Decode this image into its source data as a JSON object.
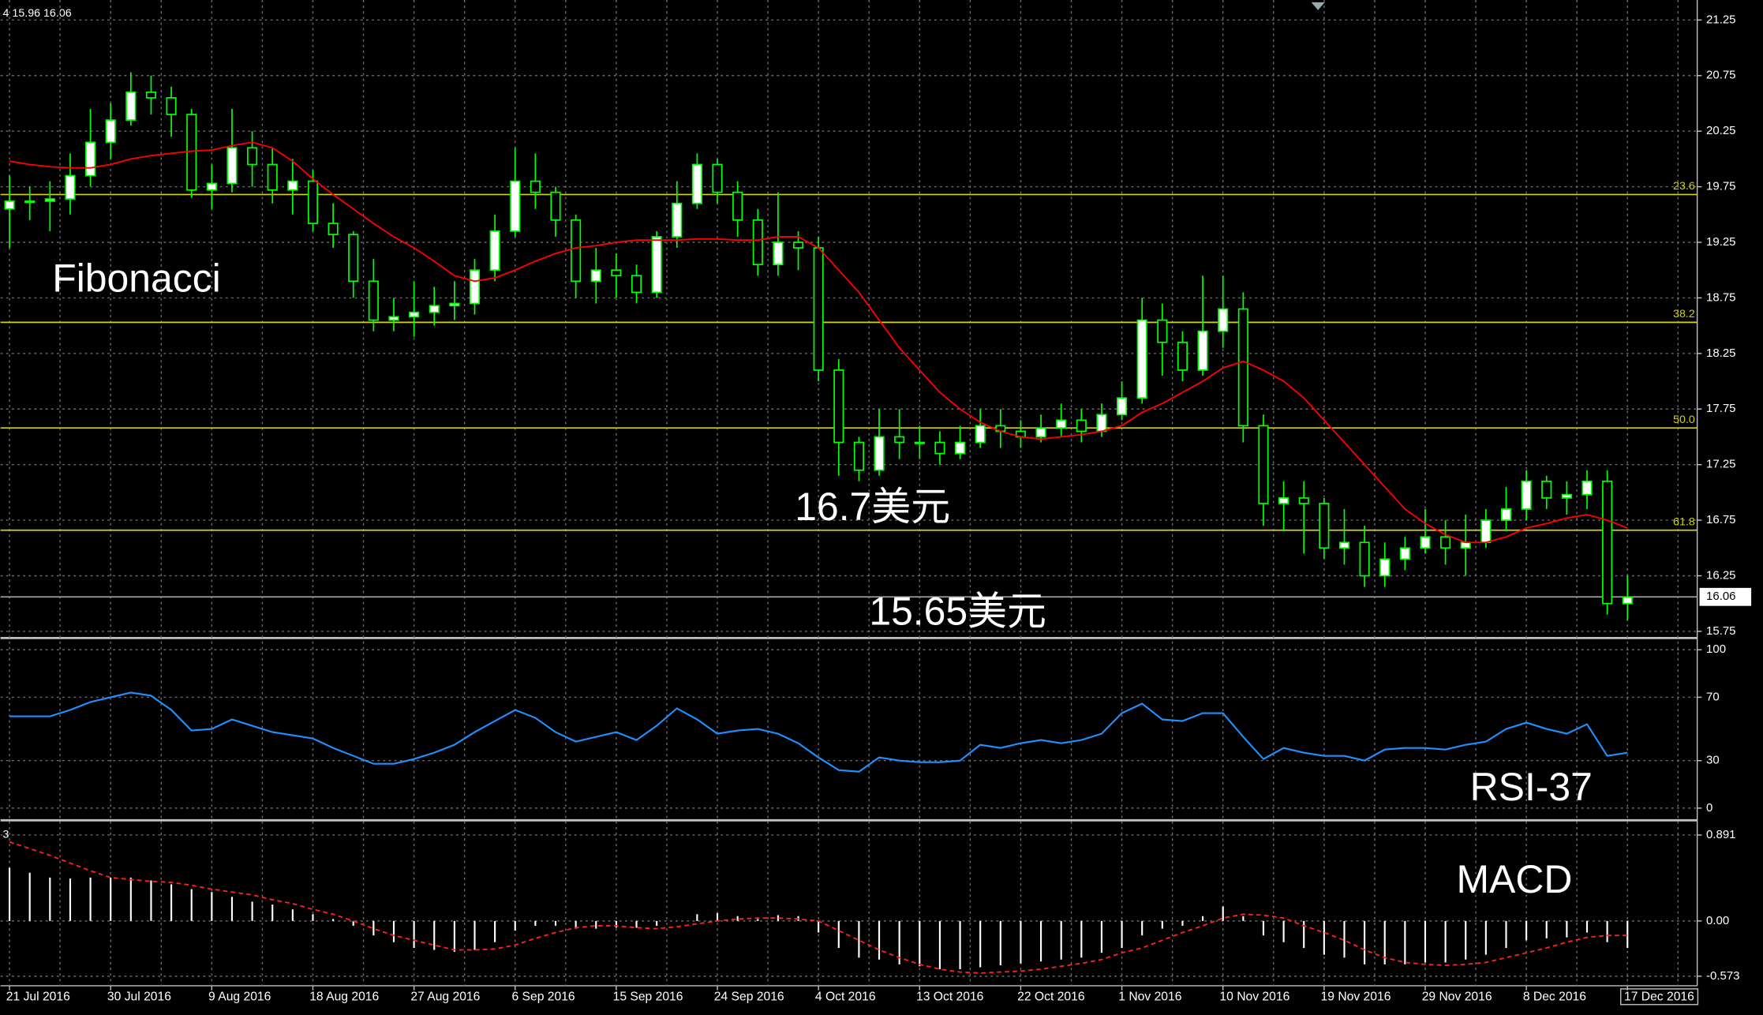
{
  "header": "4 15.96 16.06",
  "chart_data": [
    {
      "type": "candlestick",
      "categories": [
        "21 Jul 2016",
        null,
        null,
        null,
        null,
        "30 Jul 2016",
        null,
        null,
        null,
        null,
        "9 Aug 2016",
        null,
        null,
        null,
        null,
        "18 Aug 2016",
        null,
        null,
        null,
        null,
        "27 Aug 2016",
        null,
        null,
        null,
        null,
        "6 Sep 2016",
        null,
        null,
        null,
        null,
        "15 Sep 2016",
        null,
        null,
        null,
        null,
        "24 Sep 2016",
        null,
        null,
        null,
        null,
        "4 Oct 2016",
        null,
        null,
        null,
        null,
        "13 Oct 2016",
        null,
        null,
        null,
        null,
        "22 Oct 2016",
        null,
        null,
        null,
        null,
        "1 Nov 2016",
        null,
        null,
        null,
        null,
        "10 Nov 2016",
        null,
        null,
        null,
        null,
        "19 Nov 2016",
        null,
        null,
        null,
        null,
        "29 Nov 2016",
        null,
        null,
        null,
        null,
        "8 Dec 2016",
        null,
        null,
        null,
        null,
        "17 Dec 2016"
      ],
      "open": [
        19.55,
        19.62,
        19.62,
        19.64,
        19.85,
        20.15,
        20.35,
        20.6,
        20.55,
        20.4,
        19.72,
        19.78,
        20.1,
        19.95,
        19.72,
        19.8,
        19.42,
        19.32,
        18.9,
        18.55,
        18.58,
        18.62,
        18.68,
        18.7,
        19.0,
        19.35,
        19.8,
        19.7,
        19.45,
        18.9,
        19.0,
        18.95,
        18.8,
        19.3,
        19.6,
        19.95,
        19.7,
        19.45,
        19.05,
        19.25,
        19.2,
        18.1,
        17.45,
        17.2,
        17.5,
        17.45,
        17.45,
        17.35,
        17.45,
        17.6,
        17.55,
        17.5,
        17.58,
        17.65,
        17.55,
        17.7,
        17.85,
        18.55,
        18.35,
        18.1,
        18.45,
        18.65,
        17.6,
        16.9,
        16.95,
        16.9,
        16.5,
        16.55,
        16.25,
        16.4,
        16.5,
        16.6,
        16.5,
        16.55,
        16.75,
        16.85,
        17.1,
        16.95,
        16.98,
        17.1,
        16.0
      ],
      "high": [
        19.85,
        19.75,
        19.8,
        20.05,
        20.45,
        20.5,
        20.78,
        20.75,
        20.65,
        20.45,
        19.95,
        20.45,
        20.25,
        20.1,
        20.0,
        19.9,
        19.6,
        19.35,
        19.1,
        18.75,
        18.9,
        18.85,
        18.9,
        19.1,
        19.5,
        20.1,
        20.05,
        19.75,
        19.5,
        19.2,
        19.15,
        19.05,
        19.35,
        19.8,
        20.05,
        20.0,
        19.8,
        19.55,
        19.7,
        19.35,
        19.3,
        18.2,
        17.5,
        17.75,
        17.75,
        17.6,
        17.55,
        17.6,
        17.75,
        17.75,
        17.65,
        17.7,
        17.8,
        17.75,
        17.8,
        18.0,
        18.75,
        18.7,
        18.45,
        18.95,
        18.95,
        18.8,
        17.7,
        17.1,
        17.1,
        16.95,
        16.85,
        16.7,
        16.55,
        16.6,
        16.85,
        16.75,
        16.8,
        16.85,
        17.05,
        17.2,
        17.15,
        17.1,
        17.2,
        17.2,
        16.25
      ],
      "low": [
        19.2,
        19.45,
        19.35,
        19.5,
        19.75,
        20.0,
        20.3,
        20.4,
        20.2,
        19.65,
        19.55,
        19.7,
        19.75,
        19.6,
        19.5,
        19.35,
        19.2,
        18.75,
        18.45,
        18.45,
        18.4,
        18.5,
        18.55,
        18.6,
        18.9,
        19.3,
        19.55,
        19.3,
        18.75,
        18.7,
        18.75,
        18.7,
        18.75,
        19.2,
        19.55,
        19.6,
        19.3,
        18.95,
        18.95,
        19.0,
        18.0,
        17.15,
        17.1,
        17.15,
        17.3,
        17.3,
        17.25,
        17.3,
        17.4,
        17.4,
        17.4,
        17.45,
        17.5,
        17.45,
        17.5,
        17.65,
        17.8,
        18.05,
        18.0,
        18.05,
        18.3,
        17.45,
        16.7,
        16.65,
        16.45,
        16.4,
        16.35,
        16.15,
        16.15,
        16.3,
        16.45,
        16.35,
        16.25,
        16.5,
        16.65,
        16.75,
        16.85,
        16.8,
        16.85,
        15.9,
        15.85
      ],
      "close": [
        19.62,
        19.62,
        19.64,
        19.85,
        20.15,
        20.35,
        20.6,
        20.55,
        20.4,
        19.72,
        19.78,
        20.1,
        19.95,
        19.72,
        19.8,
        19.42,
        19.32,
        18.9,
        18.55,
        18.58,
        18.62,
        18.68,
        18.7,
        19.0,
        19.35,
        19.8,
        19.7,
        19.45,
        18.9,
        19.0,
        18.95,
        18.8,
        19.3,
        19.6,
        19.95,
        19.7,
        19.45,
        19.05,
        19.25,
        19.2,
        18.1,
        17.45,
        17.2,
        17.5,
        17.45,
        17.45,
        17.35,
        17.45,
        17.6,
        17.55,
        17.5,
        17.58,
        17.65,
        17.55,
        17.7,
        17.85,
        18.55,
        18.35,
        18.1,
        18.45,
        18.65,
        17.6,
        16.9,
        16.95,
        16.9,
        16.5,
        16.55,
        16.25,
        16.4,
        16.5,
        16.6,
        16.5,
        16.55,
        16.75,
        16.85,
        17.1,
        16.95,
        16.98,
        17.1,
        16.0,
        16.06
      ],
      "color": "#00ff00",
      "ma": {
        "color": "#ff0000",
        "values": [
          19.98,
          19.95,
          19.93,
          19.92,
          19.92,
          19.95,
          20.0,
          20.03,
          20.05,
          20.07,
          20.08,
          20.12,
          20.15,
          20.1,
          19.98,
          19.82,
          19.68,
          19.55,
          19.42,
          19.3,
          19.2,
          19.08,
          18.95,
          18.9,
          18.93,
          19.0,
          19.08,
          19.15,
          19.2,
          19.22,
          19.25,
          19.27,
          19.27,
          19.27,
          19.28,
          19.28,
          19.27,
          19.27,
          19.3,
          19.3,
          19.2,
          19.0,
          18.8,
          18.55,
          18.3,
          18.1,
          17.9,
          17.75,
          17.63,
          17.55,
          17.5,
          17.48,
          17.5,
          17.52,
          17.55,
          17.6,
          17.72,
          17.8,
          17.9,
          18.0,
          18.12,
          18.18,
          18.1,
          18.0,
          17.85,
          17.65,
          17.45,
          17.25,
          17.05,
          16.85,
          16.72,
          16.62,
          16.55,
          16.55,
          16.6,
          16.68,
          16.72,
          16.77,
          16.8,
          16.75,
          16.68
        ]
      },
      "fib_levels": [
        {
          "label": "23.6",
          "price": 19.68
        },
        {
          "label": "38.2",
          "price": 18.53
        },
        {
          "label": "50.0",
          "price": 17.58
        },
        {
          "label": "61.8",
          "price": 16.66
        }
      ],
      "fib_color": "#d4d400",
      "last_price": 16.06,
      "annotations": [
        "Fibonacci",
        "16.7美元",
        "15.65美元"
      ],
      "ylim": [
        15.7,
        21.43
      ],
      "yticks": [
        15.75,
        16.25,
        16.75,
        17.25,
        17.75,
        18.25,
        18.75,
        19.25,
        19.75,
        20.25,
        20.75,
        21.25
      ],
      "grid": true
    },
    {
      "type": "line",
      "title": "RSI-37",
      "color": "#1e90ff",
      "values": [
        58,
        58,
        58,
        62,
        67,
        70,
        73,
        71,
        62,
        49,
        50,
        56,
        52,
        48,
        46,
        44,
        38,
        33,
        28,
        28,
        31,
        35,
        40,
        48,
        55,
        62,
        57,
        48,
        42,
        45,
        48,
        43,
        52,
        63,
        56,
        47,
        49,
        50,
        47,
        41,
        32,
        24,
        23,
        32,
        30,
        29,
        29,
        30,
        40,
        38,
        41,
        43,
        41,
        43,
        47,
        60,
        66,
        56,
        55,
        60,
        60,
        45,
        31,
        38,
        35,
        33,
        33,
        30,
        37,
        38,
        38,
        37,
        40,
        42,
        50,
        54,
        50,
        47,
        53,
        33,
        35
      ],
      "ylim": [
        -7,
        106
      ],
      "yticks": [
        0,
        30,
        70,
        100
      ],
      "grid": true
    },
    {
      "type": "macd",
      "title": "MACD",
      "corner_label": "3",
      "histogram": {
        "color": "#ffffff",
        "values": [
          0.55,
          0.5,
          0.45,
          0.44,
          0.45,
          0.45,
          0.45,
          0.42,
          0.38,
          0.33,
          0.3,
          0.25,
          0.2,
          0.17,
          0.12,
          0.07,
          0.02,
          -0.05,
          -0.15,
          -0.22,
          -0.28,
          -0.3,
          -0.32,
          -0.3,
          -0.22,
          -0.1,
          -0.05,
          -0.05,
          -0.08,
          -0.08,
          -0.07,
          -0.07,
          -0.05,
          0.0,
          0.07,
          0.08,
          0.05,
          0.02,
          0.06,
          0.05,
          -0.12,
          -0.28,
          -0.38,
          -0.4,
          -0.45,
          -0.47,
          -0.5,
          -0.5,
          -0.48,
          -0.46,
          -0.44,
          -0.42,
          -0.4,
          -0.38,
          -0.33,
          -0.28,
          -0.15,
          -0.08,
          -0.05,
          0.05,
          0.15,
          0.05,
          -0.15,
          -0.22,
          -0.28,
          -0.35,
          -0.38,
          -0.45,
          -0.45,
          -0.45,
          -0.43,
          -0.43,
          -0.4,
          -0.35,
          -0.28,
          -0.2,
          -0.18,
          -0.17,
          -0.12,
          -0.22,
          -0.28
        ]
      },
      "signal": {
        "color": "#ff2020",
        "values": [
          0.82,
          0.75,
          0.68,
          0.6,
          0.52,
          0.45,
          0.43,
          0.41,
          0.4,
          0.37,
          0.33,
          0.3,
          0.27,
          0.22,
          0.18,
          0.12,
          0.07,
          0.0,
          -0.08,
          -0.15,
          -0.2,
          -0.25,
          -0.3,
          -0.3,
          -0.29,
          -0.25,
          -0.18,
          -0.12,
          -0.07,
          -0.05,
          -0.05,
          -0.07,
          -0.08,
          -0.06,
          -0.03,
          0.0,
          0.02,
          0.03,
          0.03,
          0.02,
          0.0,
          -0.1,
          -0.2,
          -0.3,
          -0.38,
          -0.45,
          -0.5,
          -0.53,
          -0.54,
          -0.53,
          -0.52,
          -0.5,
          -0.47,
          -0.44,
          -0.4,
          -0.33,
          -0.28,
          -0.2,
          -0.12,
          -0.05,
          0.03,
          0.07,
          0.06,
          0.03,
          -0.05,
          -0.12,
          -0.2,
          -0.3,
          -0.38,
          -0.43,
          -0.45,
          -0.46,
          -0.45,
          -0.43,
          -0.38,
          -0.33,
          -0.28,
          -0.22,
          -0.17,
          -0.15,
          -0.15
        ]
      },
      "ylim": [
        -0.66,
        1.02
      ],
      "yticks": [
        -0.573,
        {
          "value": 0,
          "label": "0.00"
        },
        0.891
      ]
    }
  ]
}
